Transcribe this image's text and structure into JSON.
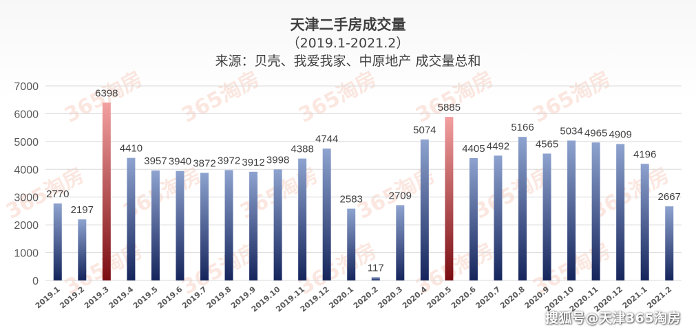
{
  "chart_data": {
    "type": "bar",
    "title": "天津二手房成交量",
    "subtitle": "（2019.1-2021.2）",
    "source": "来源：贝壳、我爱我家、中原地产 成交量总和",
    "categories": [
      "2019.1",
      "2019.2",
      "2019.3",
      "2019.4",
      "2019.5",
      "2019.6",
      "2019.7",
      "2019.8",
      "2019.9",
      "2019.10",
      "2019.11",
      "2019.12",
      "2020.1",
      "2020.2",
      "2020.3",
      "2020.4",
      "2020.5",
      "2020.6",
      "2020.7",
      "2020.8",
      "2020.9",
      "2020.10",
      "2020.11",
      "2020.12",
      "2021.1",
      "2021.2"
    ],
    "values": [
      2770,
      2197,
      6398,
      4410,
      3957,
      3940,
      3872,
      3972,
      3912,
      3998,
      4388,
      4744,
      2583,
      117,
      2709,
      5074,
      5885,
      4405,
      4492,
      5166,
      4565,
      5034,
      4965,
      4909,
      4196,
      2667
    ],
    "highlight": [
      "2019.3",
      "2020.5"
    ],
    "ylim": [
      0,
      7000
    ],
    "yticks": [
      0,
      1000,
      2000,
      3000,
      4000,
      5000,
      6000,
      7000
    ],
    "grid": true,
    "xlabel": "",
    "ylabel": "",
    "colors": {
      "bar_top": "#8ea3cf",
      "bar_bottom": "#15255c",
      "highlight_top": "#f3a0a0",
      "highlight_bottom": "#7a0d12",
      "grid": "#d9d9d9",
      "axis_text": "#595959",
      "label_text": "#404040"
    }
  },
  "watermark": "365淘房",
  "brand_footer": "搜狐号@天津365淘房"
}
